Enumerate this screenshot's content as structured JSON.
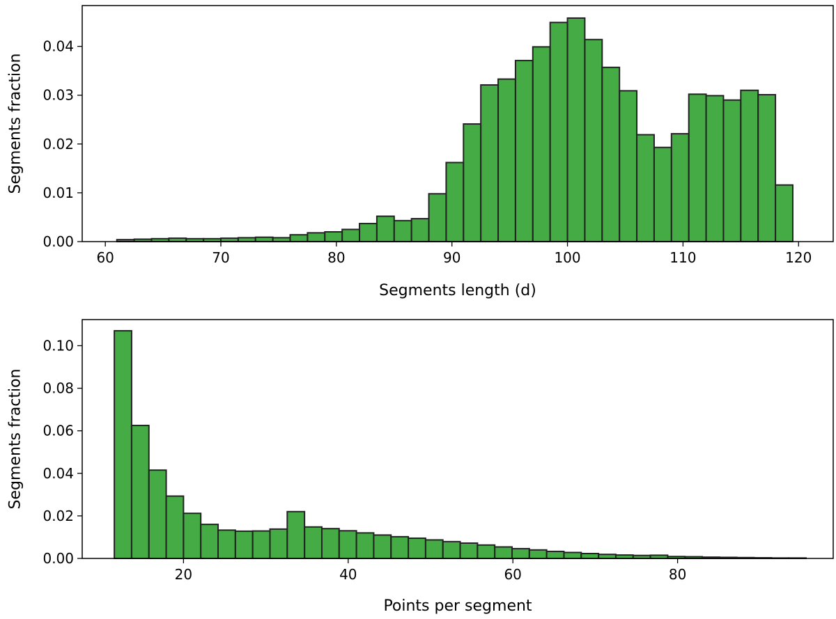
{
  "chart_data": [
    {
      "type": "bar",
      "xlabel": "Segments length (d)",
      "ylabel": "Segments fraction",
      "xlim": [
        58,
        123
      ],
      "ylim": [
        0,
        0.04836
      ],
      "xticks": [
        60,
        70,
        80,
        90,
        100,
        110,
        120
      ],
      "xtick_labels": [
        "60",
        "70",
        "80",
        "90",
        "100",
        "110",
        "120"
      ],
      "yticks": [
        0,
        0.01,
        0.02,
        0.03,
        0.04
      ],
      "ytick_labels": [
        "0.00",
        "0.01",
        "0.02",
        "0.03",
        "0.04"
      ],
      "bins": {
        "start": 61,
        "width": 1.5,
        "values": [
          0.0004,
          0.0005,
          0.0006,
          0.0007,
          0.0006,
          0.0006,
          0.0007,
          0.0008,
          0.0009,
          0.0008,
          0.0014,
          0.0018,
          0.002,
          0.0025,
          0.0037,
          0.0052,
          0.0043,
          0.0047,
          0.0098,
          0.0162,
          0.0241,
          0.0321,
          0.0333,
          0.0371,
          0.0399,
          0.0449,
          0.0458,
          0.0414,
          0.0357,
          0.0309,
          0.0219,
          0.0193,
          0.0221,
          0.0302,
          0.0299,
          0.029,
          0.031,
          0.0301,
          0.0116
        ]
      },
      "colors": {
        "fill": "#249c24",
        "edge": "#222222"
      }
    },
    {
      "type": "bar",
      "xlabel": "Points per segment",
      "ylabel": "Segments fraction",
      "xlim": [
        7.7,
        98.9
      ],
      "ylim": [
        0,
        0.11226
      ],
      "xticks": [
        20,
        40,
        60,
        80
      ],
      "xtick_labels": [
        "20",
        "40",
        "60",
        "80"
      ],
      "yticks": [
        0,
        0.02,
        0.04,
        0.06,
        0.08,
        0.1
      ],
      "ytick_labels": [
        "0.00",
        "0.02",
        "0.04",
        "0.06",
        "0.08",
        "0.10"
      ],
      "bins": {
        "start": 11.6,
        "width": 2.1,
        "values": [
          0.107,
          0.0625,
          0.0415,
          0.0293,
          0.0212,
          0.016,
          0.0133,
          0.0128,
          0.0129,
          0.0138,
          0.022,
          0.0148,
          0.014,
          0.013,
          0.012,
          0.011,
          0.0102,
          0.0095,
          0.0087,
          0.0079,
          0.0072,
          0.0063,
          0.0054,
          0.0046,
          0.004,
          0.0033,
          0.0028,
          0.0023,
          0.0019,
          0.0016,
          0.0014,
          0.0015,
          0.0009,
          0.0008,
          0.0006,
          0.0005,
          0.0004,
          0.0003,
          0.0002,
          0.0002
        ]
      },
      "colors": {
        "fill": "#249c24",
        "edge": "#222222"
      }
    }
  ]
}
